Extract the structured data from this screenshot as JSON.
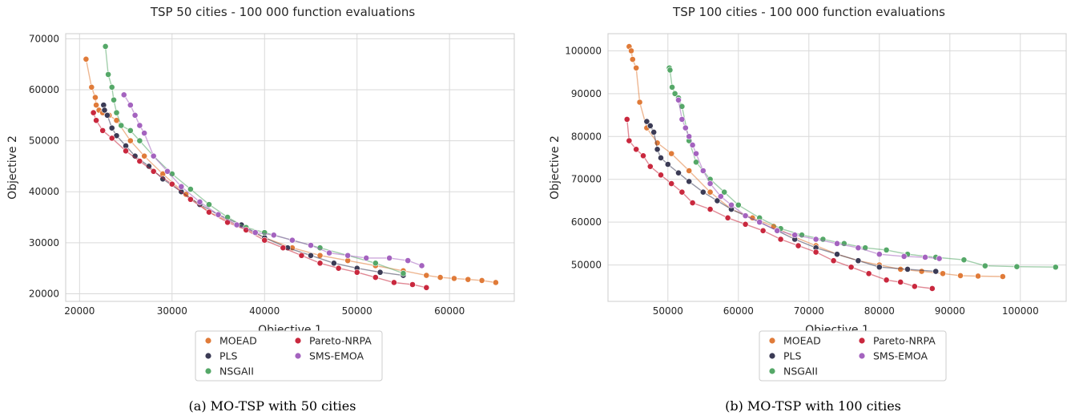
{
  "series_meta": [
    {
      "name": "MOEAD",
      "color": "#e07b39"
    },
    {
      "name": "PLS",
      "color": "#3b3b55"
    },
    {
      "name": "NSGAII",
      "color": "#55a868"
    },
    {
      "name": "Pareto-NRPA",
      "color": "#c9283e"
    },
    {
      "name": "SMS-EMOA",
      "color": "#a463bf"
    }
  ],
  "chart_data": [
    {
      "type": "scatter",
      "title": "TSP 50 cities - 100 000 function evaluations",
      "xlabel": "Objective 1",
      "ylabel": "Objective 2",
      "xlim": [
        18500,
        67000
      ],
      "ylim": [
        18500,
        71000
      ],
      "xticks": [
        20000,
        30000,
        40000,
        50000,
        60000
      ],
      "yticks": [
        20000,
        30000,
        40000,
        50000,
        60000,
        70000
      ],
      "grid": true,
      "legend_position": "below",
      "caption": "(a) MO-TSP with 50 cities",
      "series": [
        {
          "name": "MOEAD",
          "x": [
            20700,
            21300,
            21700,
            21800,
            22100,
            22500,
            23200,
            24000,
            25500,
            27000,
            29000,
            31500,
            34000,
            37000,
            40000,
            43000,
            46000,
            49000,
            52000,
            55000,
            57500,
            59000,
            60500,
            62000,
            63500,
            65000
          ],
          "y": [
            66000,
            60500,
            58500,
            57000,
            56000,
            55500,
            55000,
            54000,
            50000,
            47000,
            43500,
            39500,
            36000,
            33500,
            31000,
            29000,
            27500,
            26500,
            25500,
            24500,
            23600,
            23200,
            23000,
            22800,
            22600,
            22200
          ]
        },
        {
          "name": "PLS",
          "x": [
            22600,
            22700,
            23000,
            23500,
            24000,
            25000,
            26000,
            27500,
            29000,
            31000,
            33000,
            35000,
            37500,
            40000,
            42500,
            45000,
            47500,
            50000,
            52500,
            55000
          ],
          "y": [
            57000,
            56000,
            55000,
            52500,
            51000,
            49000,
            47000,
            45000,
            42500,
            40000,
            37500,
            35500,
            33500,
            31000,
            29000,
            27500,
            26000,
            25000,
            24200,
            23600
          ]
        },
        {
          "name": "NSGAII",
          "x": [
            22800,
            23100,
            23500,
            23700,
            24000,
            24500,
            25500,
            26500,
            28000,
            30000,
            32000,
            34000,
            36000,
            38000,
            40000,
            43000,
            46000,
            49000,
            52000,
            55000
          ],
          "y": [
            68500,
            63000,
            60500,
            58000,
            55500,
            53000,
            52000,
            50000,
            47000,
            43500,
            40500,
            37500,
            35000,
            33000,
            32000,
            30500,
            29000,
            27500,
            26000,
            24000
          ]
        },
        {
          "name": "Pareto-NRPA",
          "x": [
            21500,
            21800,
            22500,
            23500,
            25000,
            26500,
            28000,
            30000,
            32000,
            34000,
            36000,
            38000,
            40000,
            42000,
            44000,
            46000,
            48000,
            50000,
            52000,
            54000,
            56000,
            57500
          ],
          "y": [
            55500,
            54000,
            52000,
            50500,
            48000,
            46000,
            44000,
            41500,
            38500,
            36000,
            34000,
            32500,
            30500,
            29000,
            27500,
            26000,
            25000,
            24200,
            23200,
            22200,
            21800,
            21200
          ]
        },
        {
          "name": "SMS-EMOA",
          "x": [
            24800,
            25500,
            26000,
            26500,
            27000,
            28000,
            29500,
            31000,
            33000,
            35000,
            37000,
            39000,
            41000,
            43000,
            45000,
            47000,
            49000,
            51000,
            53500,
            55500,
            57000
          ],
          "y": [
            59000,
            57000,
            55000,
            53000,
            51500,
            47000,
            44000,
            41000,
            38000,
            35500,
            33500,
            32000,
            31500,
            30500,
            29500,
            28000,
            27500,
            27000,
            27000,
            26500,
            25500
          ]
        }
      ]
    },
    {
      "type": "scatter",
      "title": "TSP 100 cities - 100 000 function evaluations",
      "xlabel": "Objective 1",
      "ylabel": "Objective 2",
      "xlim": [
        41500,
        106500
      ],
      "ylim": [
        41500,
        104000
      ],
      "xticks": [
        50000,
        60000,
        70000,
        80000,
        90000,
        100000
      ],
      "yticks": [
        50000,
        60000,
        70000,
        80000,
        90000,
        100000
      ],
      "grid": true,
      "legend_position": "below",
      "caption": "(b) MO-TSP with 100 cities",
      "series": [
        {
          "name": "MOEAD",
          "x": [
            44500,
            44800,
            45000,
            45500,
            46000,
            47000,
            48500,
            50500,
            53000,
            56000,
            59000,
            62000,
            65000,
            68000,
            71000,
            74000,
            77000,
            80000,
            83000,
            86000,
            89000,
            91500,
            94000,
            97500
          ],
          "y": [
            101000,
            100000,
            98000,
            96000,
            88000,
            82000,
            78500,
            76000,
            72000,
            67000,
            63000,
            61000,
            59000,
            56500,
            54500,
            52500,
            51000,
            50000,
            49000,
            48500,
            48000,
            47500,
            47400,
            47300
          ]
        },
        {
          "name": "PLS",
          "x": [
            47000,
            47500,
            48000,
            48500,
            49000,
            50000,
            51500,
            53000,
            55000,
            57000,
            59000,
            61000,
            63000,
            65500,
            68000,
            71000,
            74000,
            77000,
            80000,
            84000,
            88000
          ],
          "y": [
            83500,
            82500,
            81000,
            77000,
            75000,
            73500,
            71500,
            69500,
            67000,
            65000,
            63000,
            61500,
            60000,
            58000,
            56000,
            54000,
            52500,
            51000,
            49500,
            49000,
            48500
          ]
        },
        {
          "name": "NSGAII",
          "x": [
            50200,
            50300,
            50600,
            51000,
            51500,
            52000,
            53000,
            54000,
            56000,
            58000,
            60000,
            63000,
            66000,
            69000,
            72000,
            75000,
            78000,
            81000,
            84000,
            88000,
            92000,
            95000,
            99500,
            105000
          ],
          "y": [
            96000,
            95500,
            91500,
            90000,
            89000,
            87000,
            79000,
            74000,
            70000,
            67000,
            64000,
            61000,
            58500,
            57000,
            56000,
            55000,
            54000,
            53500,
            52500,
            51800,
            51200,
            49800,
            49600,
            49500
          ]
        },
        {
          "name": "Pareto-NRPA",
          "x": [
            44200,
            44500,
            45500,
            46500,
            47500,
            49000,
            50500,
            52000,
            53500,
            56000,
            58500,
            61000,
            63500,
            66000,
            68500,
            71000,
            73500,
            76000,
            78500,
            81000,
            83000,
            85000,
            87500
          ],
          "y": [
            84000,
            79000,
            77000,
            75500,
            73000,
            71000,
            69000,
            67000,
            64500,
            63000,
            61000,
            59500,
            58000,
            56000,
            54500,
            53000,
            51000,
            49500,
            48000,
            46500,
            46000,
            45000,
            44500
          ]
        },
        {
          "name": "SMS-EMOA",
          "x": [
            51500,
            52000,
            52500,
            53000,
            53500,
            54000,
            55000,
            56000,
            57500,
            59000,
            61000,
            63000,
            65500,
            68000,
            71000,
            74000,
            77000,
            80000,
            83500,
            86500,
            88500
          ],
          "y": [
            88500,
            84000,
            82000,
            80000,
            78000,
            76000,
            72000,
            69000,
            66000,
            64000,
            61500,
            60000,
            58000,
            57000,
            56000,
            55000,
            54000,
            52500,
            52000,
            51800,
            51500
          ]
        }
      ]
    }
  ]
}
